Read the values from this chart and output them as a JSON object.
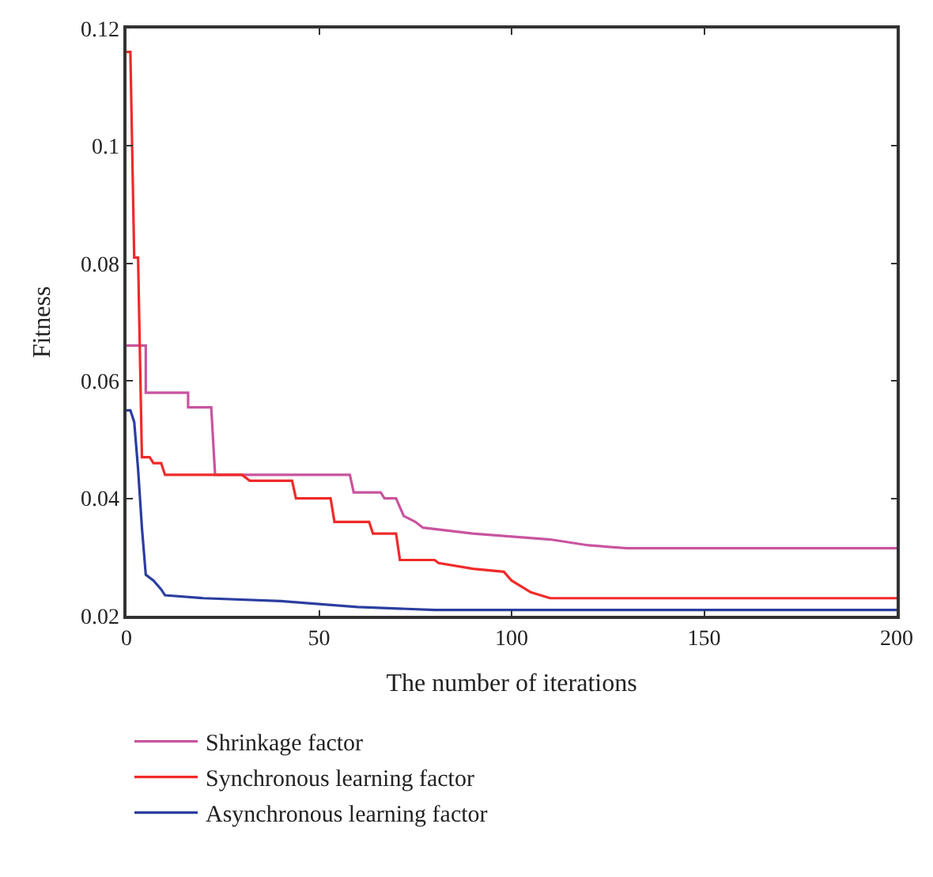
{
  "chart_data": {
    "type": "line",
    "xlabel": "The number of iterations",
    "ylabel": "Fitness",
    "xlim": [
      0,
      200
    ],
    "xticks": [
      0,
      50,
      100,
      150,
      200
    ],
    "ylim": [
      0.02,
      0.12
    ],
    "yticks": [
      0.02,
      0.04,
      0.06,
      0.08,
      0.1,
      0.12
    ],
    "legend": "bottom",
    "marker": "none",
    "line_style": "solid",
    "series": [
      {
        "name": "Shrinkage factor",
        "color": "#c9549f",
        "x": [
          0,
          5,
          5,
          16,
          16,
          22,
          23,
          58,
          59,
          66,
          67,
          70,
          72,
          75,
          77,
          90,
          100,
          110,
          120,
          130,
          200
        ],
        "values": [
          0.066,
          0.066,
          0.058,
          0.058,
          0.0555,
          0.0555,
          0.044,
          0.044,
          0.041,
          0.041,
          0.04,
          0.04,
          0.037,
          0.036,
          0.035,
          0.034,
          0.0335,
          0.033,
          0.032,
          0.0315,
          0.0315
        ]
      },
      {
        "name": "Synchronous learning factor",
        "color": "#f02a2a",
        "x": [
          0,
          1,
          2,
          3,
          4,
          6,
          7,
          9,
          10,
          30,
          32,
          43,
          44,
          53,
          54,
          63,
          64,
          70,
          71,
          80,
          81,
          90,
          98,
          100,
          105,
          110,
          200
        ],
        "values": [
          0.116,
          0.116,
          0.081,
          0.081,
          0.047,
          0.047,
          0.046,
          0.046,
          0.044,
          0.044,
          0.043,
          0.043,
          0.04,
          0.04,
          0.036,
          0.036,
          0.034,
          0.034,
          0.0295,
          0.0295,
          0.029,
          0.028,
          0.0275,
          0.026,
          0.024,
          0.023,
          0.023
        ]
      },
      {
        "name": "Asynchronous learning factor",
        "color": "#2b3ea0",
        "x": [
          0,
          1,
          2,
          3,
          4,
          5,
          7,
          9,
          10,
          20,
          40,
          60,
          80,
          100,
          200
        ],
        "values": [
          0.055,
          0.055,
          0.053,
          0.045,
          0.035,
          0.027,
          0.026,
          0.0245,
          0.0235,
          0.023,
          0.0225,
          0.0215,
          0.021,
          0.021,
          0.021
        ]
      }
    ]
  }
}
